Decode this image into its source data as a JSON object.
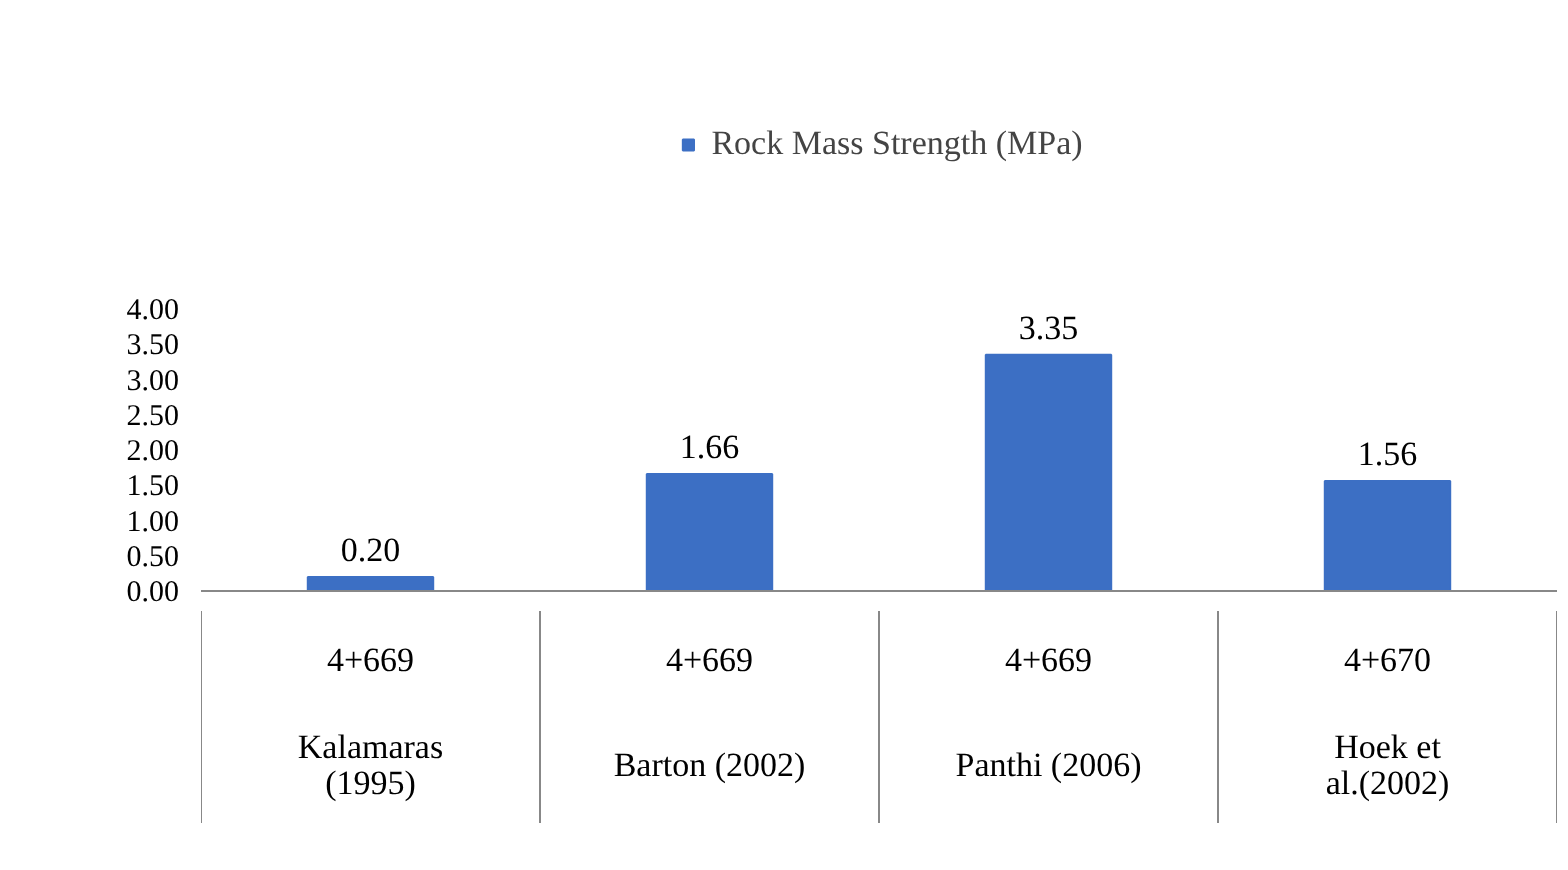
{
  "chart_data": {
    "type": "bar",
    "categories": [
      "4+669\nKalamaras\n(1995)",
      "4+669\nBarton (2002)",
      "4+669\nPanthi (2006)",
      "4+670\nHoek et\nal.(2002)"
    ],
    "series": [
      {
        "name": "Rock Mass Strength (MPa)",
        "color": "#3c6fc4",
        "values": [
          0.2,
          1.66,
          3.35,
          1.56
        ],
        "value_labels": [
          "0.20",
          "1.66",
          "3.35",
          "1.56"
        ]
      }
    ],
    "ylim": [
      0,
      4
    ],
    "yticks": [
      {
        "value": 0,
        "label": "0.00"
      },
      {
        "value": 0.5,
        "label": "0.50"
      },
      {
        "value": 1,
        "label": "1.00"
      },
      {
        "value": 1.5,
        "label": "1.50"
      },
      {
        "value": 2,
        "label": "2.00"
      },
      {
        "value": 2.5,
        "label": "2.50"
      },
      {
        "value": 3,
        "label": "3.00"
      },
      {
        "value": 3.5,
        "label": "3.50"
      },
      {
        "value": 4,
        "label": "4.00"
      }
    ],
    "grid": false,
    "legend": "top"
  }
}
